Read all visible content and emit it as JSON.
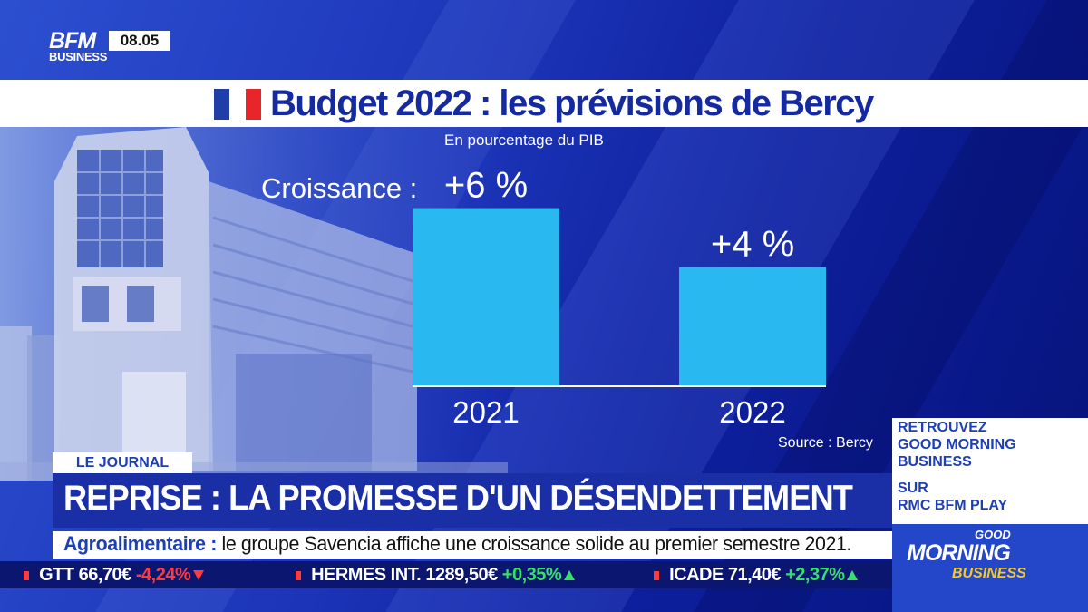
{
  "channel": {
    "logo_top": "BFM",
    "logo_bottom": "BUSINESS",
    "clock": "08.05"
  },
  "flag_colors": [
    "#1f3ea8",
    "#ffffff",
    "#e8252b"
  ],
  "chart_data": {
    "type": "bar",
    "title": "Budget 2022 : les prévisions de Bercy",
    "subtitle": "En pourcentage du PIB",
    "row_label": "Croissance :",
    "categories": [
      "2021",
      "2022"
    ],
    "values": [
      6,
      4
    ],
    "data_labels": [
      "+6 %",
      "+4 %"
    ],
    "ylim": [
      0,
      6.6
    ],
    "source": "Source : Bercy",
    "bar_color": "#2ab8f0",
    "grid": false
  },
  "lower_third": {
    "tag": "LE JOURNAL",
    "headline": "REPRISE : LA PROMESSE D'UN DÉSENDETTEMENT",
    "crawl_topic": "Agroalimentaire :",
    "crawl_text": "le groupe Savencia affiche une croissance solide au premier semestre 2021."
  },
  "ticker": [
    {
      "name": "GTT",
      "price": "66,70€",
      "change": "-4,24%",
      "dir": "down"
    },
    {
      "name": "HERMES INT.",
      "price": "1289,50€",
      "change": "+0,35%",
      "dir": "up"
    },
    {
      "name": "ICADE",
      "price": "71,40€",
      "change": "+2,37%",
      "dir": "up"
    }
  ],
  "promo": {
    "line1": "RETROUVEZ",
    "line2": "GOOD MORNING",
    "line3": "BUSINESS",
    "line4": "SUR",
    "line5": "RMC BFM PLAY",
    "logo_small": "GOOD",
    "logo_big": "MORNING",
    "logo_business": "BUSINESS"
  }
}
